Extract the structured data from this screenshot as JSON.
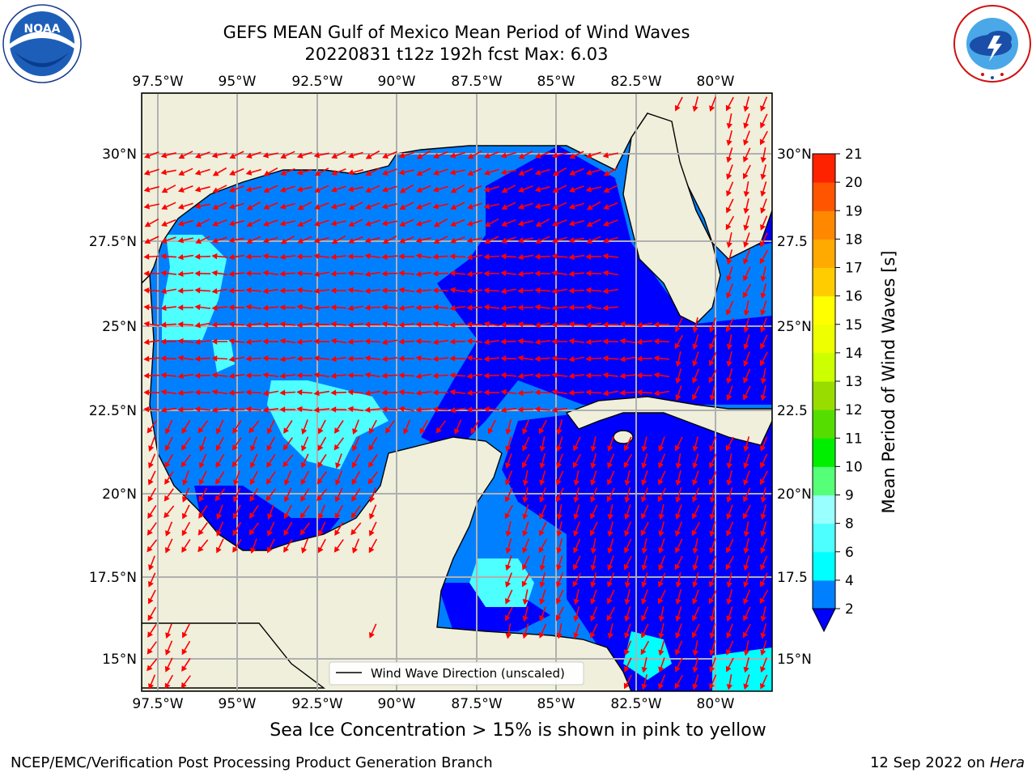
{
  "header": {
    "title_line1": "GEFS MEAN Gulf of Mexico Mean Period of Wind Waves",
    "title_line2": "20220831 t12z 192h fcst   Max: 6.03"
  },
  "logos": {
    "left": "noaa-logo",
    "right": "nws-logo"
  },
  "map": {
    "lon_labels": [
      "97.5°W",
      "95°W",
      "92.5°W",
      "90°W",
      "87.5°W",
      "85°W",
      "82.5°W",
      "80°W"
    ],
    "lat_labels_left": [
      "30°N",
      "27.5°N",
      "25°N",
      "22.5°N",
      "20°N",
      "17.5°N",
      "15°N"
    ],
    "lat_labels_right": [
      "30°N",
      "27.5",
      "25°N",
      "22.5",
      "20°N",
      "17.5",
      "15°N"
    ],
    "legend_label": "Wind Wave Direction (unscaled)",
    "colors": {
      "land": "#efefdc",
      "ocean_level_1": "#0000ff",
      "ocean_level_2": "#0080ff",
      "ocean_level_3": "#4dffff",
      "ocean_level_4": "#00ffff",
      "arrow": "#ff0000",
      "grid": "#b0b0b0"
    }
  },
  "colorbar": {
    "label": "Mean Period of Wind Waves [s]",
    "ticks": [
      "2",
      "4",
      "6",
      "8",
      "9",
      "10",
      "11",
      "12",
      "13",
      "14",
      "15",
      "16",
      "17",
      "18",
      "19",
      "20",
      "21"
    ],
    "colors": [
      "#0080ff",
      "#00ffff",
      "#4dffff",
      "#99ffff",
      "#55ff77",
      "#00ee00",
      "#55dd00",
      "#99dd00",
      "#ccff00",
      "#eeff00",
      "#ffff00",
      "#ffcc00",
      "#ffaa00",
      "#ff8800",
      "#ff5500",
      "#ff2200"
    ]
  },
  "footer": {
    "subtitle": "Sea Ice Concentration > 15% is shown in pink to yellow",
    "left": "NCEP/EMC/Verification Post Processing Product Generation Branch",
    "right_prefix": "12 Sep 2022 on",
    "right_host": "Hera"
  }
}
